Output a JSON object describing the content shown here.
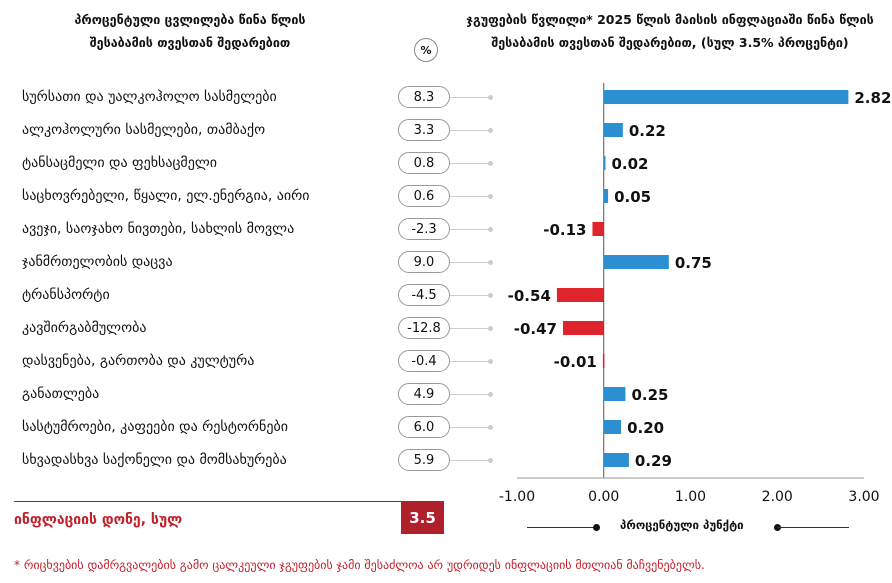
{
  "headers": {
    "left": [
      "პროცენტული ცვლილება წინა წლის",
      "შესაბამის თვესთან შედარებით"
    ],
    "right": [
      "ჯგუფების წვლილი* 2025 წლის მაისის ინფლაციაში წინა წლის",
      "შესაბამის თვესთან შედარებით, (სულ 3.5% პროცენტი)"
    ],
    "pct_badge": "%"
  },
  "chart_data": {
    "type": "bar",
    "orientation": "horizontal",
    "categories": [
      "სურსათი და უალკოჰოლო სასმელები",
      "ალკოჰოლური სასმელები, თამბაქო",
      "ტანსაცმელი და ფეხსაცმელი",
      "საცხოვრებელი, წყალი, ელ.ენერგია, აირი",
      "ავეჯი, საოჯახო ნივთები, სახლის მოვლა",
      "ჯანმრთელობის დაცვა",
      "ტრანსპორტი",
      "კავშირგაბმულობა",
      "დასვენება, გართობა და კულტურა",
      "განათლება",
      "სასტუმროები, კაფეები და რესტორნები",
      "სხვადასხვა საქონელი და მომსახურება"
    ],
    "pct_change": [
      "8.3",
      "3.3",
      "0.8",
      "0.6",
      "-2.3",
      "9.0",
      "-4.5",
      "-12.8",
      "-0.4",
      "4.9",
      "6.0",
      "5.9"
    ],
    "values": [
      2.82,
      0.22,
      0.02,
      0.05,
      -0.13,
      0.75,
      -0.54,
      -0.47,
      -0.01,
      0.25,
      0.2,
      0.29
    ],
    "value_labels": [
      "2.82",
      "0.22",
      "0.02",
      "0.05",
      "-0.13",
      "0.75",
      "-0.54",
      "-0.47",
      "-0.01",
      "0.25",
      "0.20",
      "0.29"
    ],
    "xlim": [
      -1.0,
      3.0
    ],
    "x_ticks": [
      -1.0,
      0.0,
      1.0,
      2.0,
      3.0
    ],
    "x_tick_labels": [
      "-1.00",
      "0.00",
      "1.00",
      "2.00",
      "3.00"
    ],
    "xlabel": "პროცენტული პუნქტი",
    "colors": {
      "positive": "#2b8fd1",
      "negative": "#e0242b"
    }
  },
  "inflation": {
    "label": "ინფლაციის დონე, სულ",
    "value": "3.5"
  },
  "footnote": "* რიცხვების დამრგვალების გამო ცალკეული ჯგუფების ჯამი შესაძლოა არ უდრიდეს ინფლაციის მთლიან მაჩვენებელს."
}
